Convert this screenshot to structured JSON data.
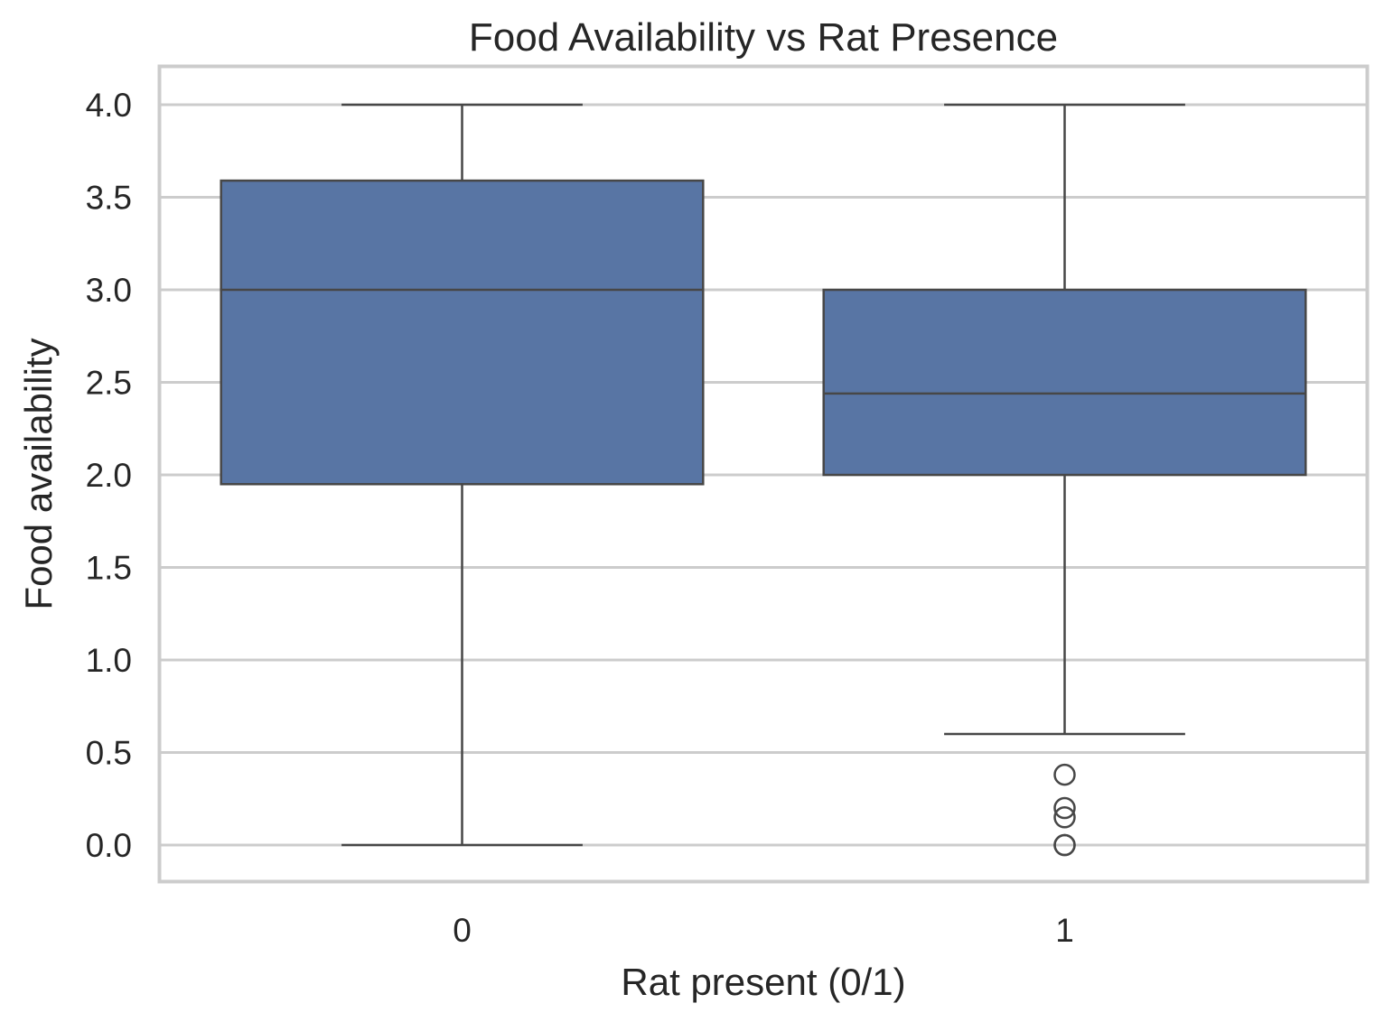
{
  "chart_data": {
    "type": "box",
    "title": "Food Availability vs Rat Presence",
    "xlabel": "Rat present (0/1)",
    "ylabel": "Food availability",
    "categories": [
      "0",
      "1"
    ],
    "ylim": [
      -0.19,
      4.2
    ],
    "yticks": [
      "0.0",
      "0.5",
      "1.0",
      "1.5",
      "2.0",
      "2.5",
      "3.0",
      "3.5",
      "4.0"
    ],
    "grid": true,
    "legend": "none",
    "box_color": "#5875a4",
    "edge_color": "#474747",
    "grid_color": "#cccccc",
    "boxes": [
      {
        "category": "0",
        "whisker_low": 0.0,
        "q1": 1.95,
        "median": 3.0,
        "q3": 3.59,
        "whisker_high": 4.0,
        "outliers": []
      },
      {
        "category": "1",
        "whisker_low": 0.6,
        "q1": 2.0,
        "median": 2.44,
        "q3": 3.0,
        "whisker_high": 4.0,
        "outliers": [
          0.38,
          0.2,
          0.15,
          0.0,
          0.0
        ]
      }
    ]
  }
}
